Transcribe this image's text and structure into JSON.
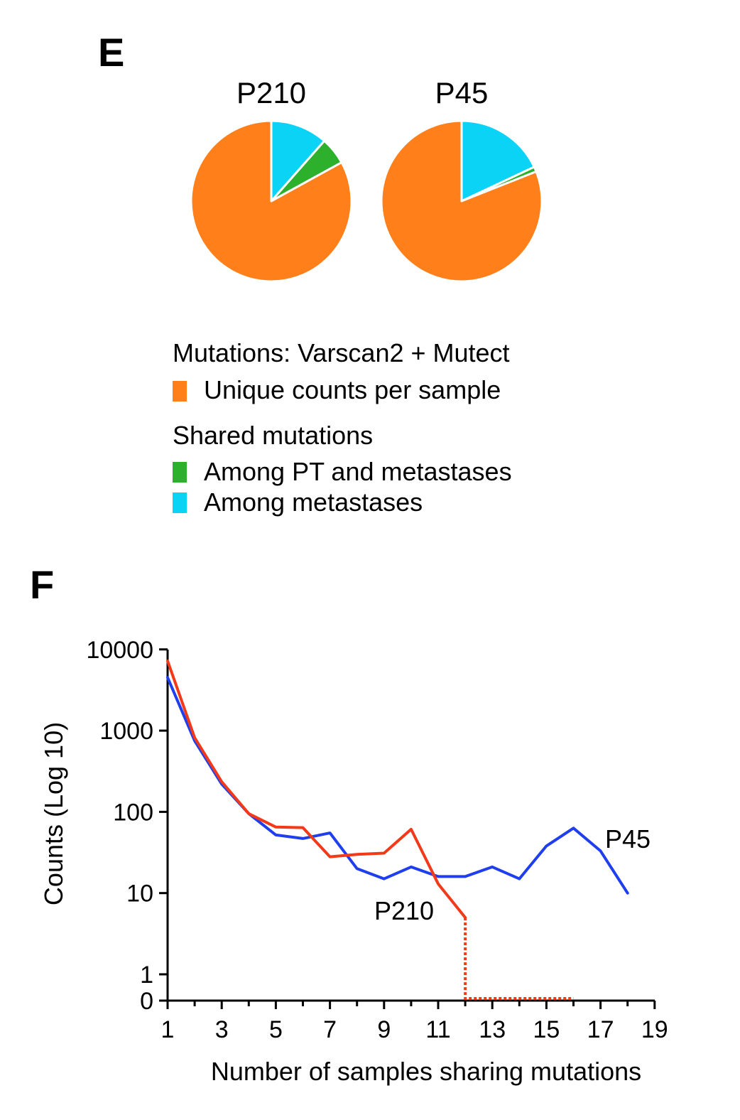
{
  "panels": {
    "e_label": "E",
    "f_label": "F"
  },
  "legend": {
    "heading": "Mutations: Varscan2 + Mutect",
    "unique_label": "Unique counts per sample",
    "shared_heading": "Shared mutations",
    "among_pt_label": "Among PT and metastases",
    "among_met_label": "Among metastases"
  },
  "colors": {
    "unique": "#FF7F1A",
    "among_pt": "#2DB12D",
    "among_met": "#0BD3F5",
    "p45_line": "#1F3FEF",
    "p210_line": "#F23A1A"
  },
  "chart_data": [
    {
      "type": "pie",
      "title": "P210",
      "slices": [
        {
          "label": "Among metastases",
          "value": 11.5,
          "color": "#0BD3F5"
        },
        {
          "label": "Among PT and metastases",
          "value": 5.5,
          "color": "#2DB12D"
        },
        {
          "label": "Unique counts per sample",
          "value": 83.0,
          "color": "#FF7F1A"
        }
      ]
    },
    {
      "type": "pie",
      "title": "P45",
      "slices": [
        {
          "label": "Among metastases",
          "value": 18.0,
          "color": "#0BD3F5"
        },
        {
          "label": "Among PT and metastases",
          "value": 1.0,
          "color": "#2DB12D"
        },
        {
          "label": "Unique counts per sample",
          "value": 81.0,
          "color": "#FF7F1A"
        }
      ]
    },
    {
      "type": "line",
      "title": "",
      "xlabel": "Number of samples sharing mutations",
      "ylabel": "Counts (Log 10)",
      "xlim": [
        1,
        19
      ],
      "xticks": [
        1,
        3,
        5,
        7,
        9,
        11,
        13,
        15,
        17,
        19
      ],
      "yticks": [
        0,
        1,
        10,
        100,
        1000,
        10000
      ],
      "yscale": "log10 with zero baseline",
      "series": [
        {
          "name": "P45",
          "color": "#1F3FEF",
          "x": [
            1,
            2,
            3,
            4,
            5,
            6,
            7,
            8,
            9,
            10,
            11,
            12,
            13,
            14,
            15,
            16,
            17,
            18
          ],
          "y": [
            4500,
            750,
            220,
            95,
            52,
            47,
            55,
            20,
            15,
            21,
            16,
            16,
            21,
            15,
            38,
            63,
            33,
            10
          ]
        },
        {
          "name": "P210",
          "color": "#F23A1A",
          "x": [
            1,
            2,
            3,
            4,
            5,
            6,
            7,
            8,
            9,
            10,
            11,
            12
          ],
          "y": [
            7200,
            820,
            235,
            95,
            65,
            64,
            28,
            30,
            31,
            61,
            13,
            5
          ]
        }
      ],
      "dotted_segment": {
        "series": "P210",
        "x": [
          12,
          12,
          16
        ],
        "y": [
          5,
          0,
          0
        ]
      }
    }
  ]
}
